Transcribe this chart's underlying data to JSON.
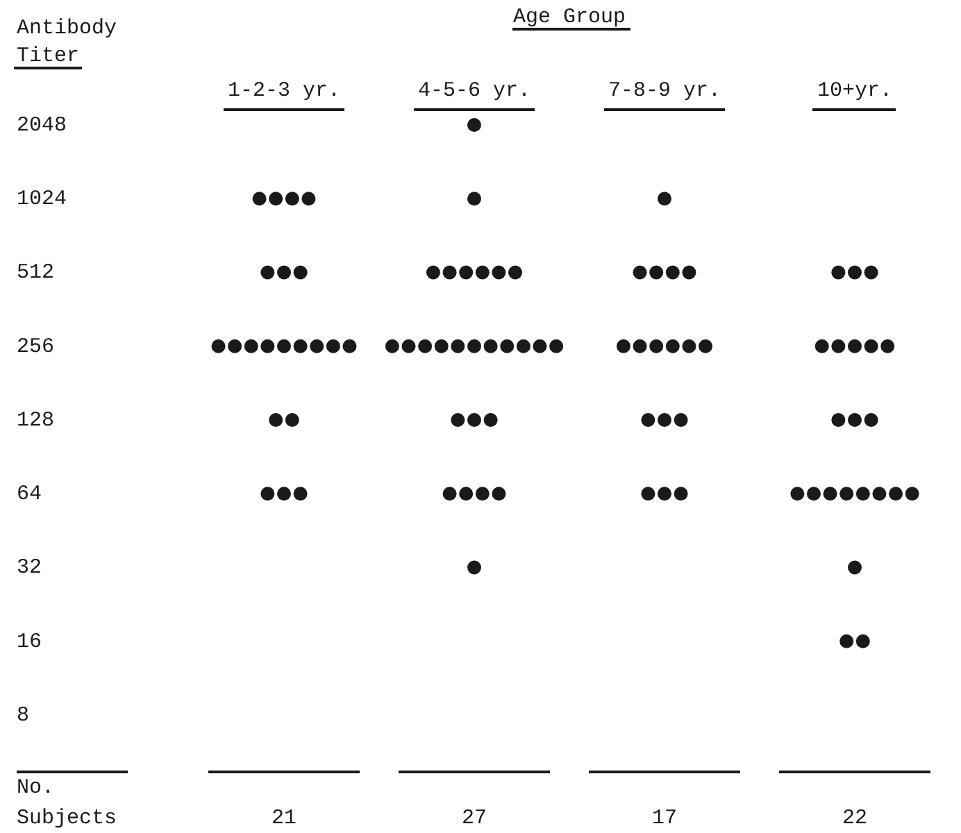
{
  "chart_data": {
    "type": "scatter",
    "title": "Age Group",
    "ylabel": "Antibody Titer",
    "categories": [
      "1-2-3 yr.",
      "4-5-6 yr.",
      "7-8-9 yr.",
      "10+yr."
    ],
    "log": "y",
    "ylim": [
      8,
      2048
    ],
    "yticks": [
      2048,
      1024,
      512,
      256,
      128,
      64,
      32,
      16,
      8
    ],
    "marker": "circle",
    "series": [
      {
        "color": "#1a1a1a",
        "x": [
          "1-2-3 yr.",
          "1-2-3 yr.",
          "1-2-3 yr.",
          "1-2-3 yr.",
          "1-2-3 yr.",
          "1-2-3 yr.",
          "1-2-3 yr.",
          "1-2-3 yr.",
          "1-2-3 yr.",
          "1-2-3 yr.",
          "1-2-3 yr.",
          "1-2-3 yr.",
          "1-2-3 yr.",
          "1-2-3 yr.",
          "1-2-3 yr.",
          "1-2-3 yr.",
          "1-2-3 yr.",
          "1-2-3 yr.",
          "1-2-3 yr.",
          "1-2-3 yr.",
          "1-2-3 yr.",
          "4-5-6 yr.",
          "4-5-6 yr.",
          "4-5-6 yr.",
          "4-5-6 yr.",
          "4-5-6 yr.",
          "4-5-6 yr.",
          "4-5-6 yr.",
          "4-5-6 yr.",
          "4-5-6 yr.",
          "4-5-6 yr.",
          "4-5-6 yr.",
          "4-5-6 yr.",
          "4-5-6 yr.",
          "4-5-6 yr.",
          "4-5-6 yr.",
          "4-5-6 yr.",
          "4-5-6 yr.",
          "4-5-6 yr.",
          "4-5-6 yr.",
          "4-5-6 yr.",
          "4-5-6 yr.",
          "4-5-6 yr.",
          "4-5-6 yr.",
          "4-5-6 yr.",
          "4-5-6 yr.",
          "4-5-6 yr.",
          "4-5-6 yr.",
          "7-8-9 yr.",
          "7-8-9 yr.",
          "7-8-9 yr.",
          "7-8-9 yr.",
          "7-8-9 yr.",
          "7-8-9 yr.",
          "7-8-9 yr.",
          "7-8-9 yr.",
          "7-8-9 yr.",
          "7-8-9 yr.",
          "7-8-9 yr.",
          "7-8-9 yr.",
          "7-8-9 yr.",
          "7-8-9 yr.",
          "7-8-9 yr.",
          "7-8-9 yr.",
          "7-8-9 yr.",
          "10+yr.",
          "10+yr.",
          "10+yr.",
          "10+yr.",
          "10+yr.",
          "10+yr.",
          "10+yr.",
          "10+yr.",
          "10+yr.",
          "10+yr.",
          "10+yr.",
          "10+yr.",
          "10+yr.",
          "10+yr.",
          "10+yr.",
          "10+yr.",
          "10+yr.",
          "10+yr.",
          "10+yr.",
          "10+yr.",
          "10+yr.",
          "10+yr."
        ],
        "values": [
          1024,
          1024,
          1024,
          1024,
          512,
          512,
          512,
          256,
          256,
          256,
          256,
          256,
          256,
          256,
          256,
          256,
          128,
          128,
          64,
          64,
          64,
          2048,
          1024,
          512,
          512,
          512,
          512,
          512,
          512,
          256,
          256,
          256,
          256,
          256,
          256,
          256,
          256,
          256,
          256,
          256,
          128,
          128,
          128,
          64,
          64,
          64,
          64,
          32,
          1024,
          512,
          512,
          512,
          512,
          256,
          256,
          256,
          256,
          256,
          256,
          128,
          128,
          128,
          64,
          64,
          64,
          512,
          512,
          512,
          256,
          256,
          256,
          256,
          256,
          128,
          128,
          128,
          64,
          64,
          64,
          64,
          64,
          64,
          64,
          64,
          32,
          16,
          16
        ]
      }
    ],
    "totals": [
      "21",
      "27",
      "17",
      "22"
    ],
    "annotations": [
      "No. Subjects"
    ]
  }
}
